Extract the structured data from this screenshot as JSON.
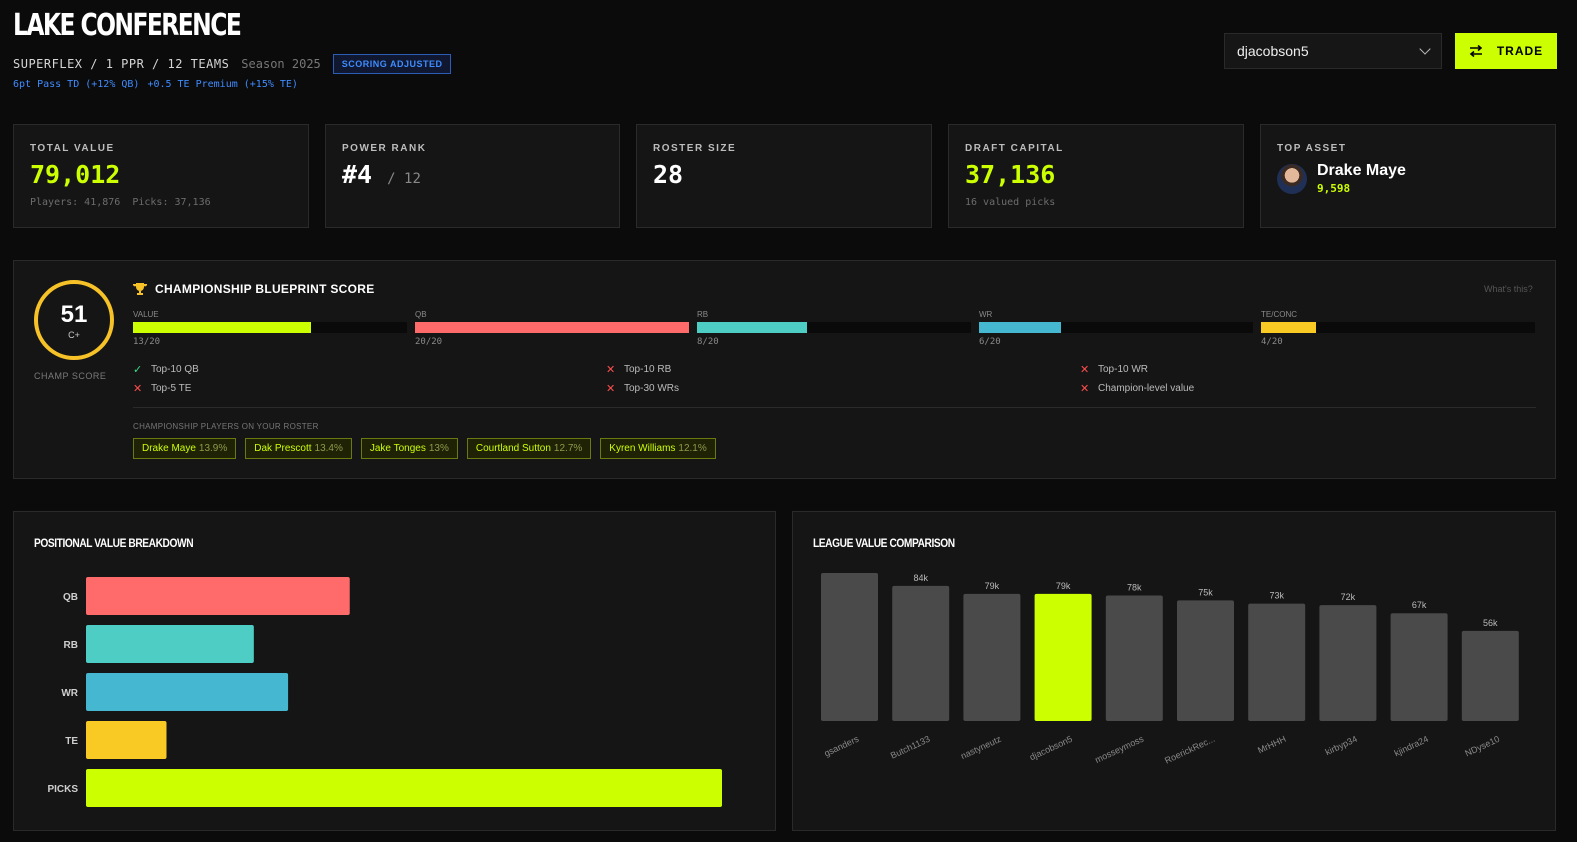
{
  "header": {
    "title": "LAKE CONFERENCE",
    "format": "SUPERFLEX / 1 PPR / 12 TEAMS",
    "season": "Season 2025",
    "badge": "SCORING ADJUSTED",
    "note1": "6pt Pass TD (+12% QB)",
    "note2": "+0.5 TE Premium (+15% TE)",
    "user": "djacobson5",
    "trade_label": "TRADE"
  },
  "cards": {
    "total": {
      "label": "TOTAL VALUE",
      "value": "79,012",
      "sub": "Players: 41,876  Picks: 37,136"
    },
    "rank": {
      "label": "POWER RANK",
      "value": "#4",
      "of": "/ 12"
    },
    "roster": {
      "label": "ROSTER SIZE",
      "value": "28"
    },
    "draft": {
      "label": "DRAFT CAPITAL",
      "value": "37,136",
      "sub": "16 valued picks"
    },
    "top": {
      "label": "TOP ASSET",
      "name": "Drake Maye",
      "value": "9,598"
    }
  },
  "blueprint": {
    "score": "51",
    "grade": "C+",
    "score_label": "CHAMP SCORE",
    "title": "CHAMPIONSHIP BLUEPRINT SCORE",
    "whats": "What's this?",
    "meters": [
      {
        "label": "VALUE",
        "score": "13/20",
        "fraction": 0.65,
        "color": "#ccff00"
      },
      {
        "label": "QB",
        "score": "20/20",
        "fraction": 1.0,
        "color": "#ff6b6b"
      },
      {
        "label": "RB",
        "score": "8/20",
        "fraction": 0.4,
        "color": "#4ecdc4"
      },
      {
        "label": "WR",
        "score": "6/20",
        "fraction": 0.3,
        "color": "#45b7d1"
      },
      {
        "label": "TE/CONC",
        "score": "4/20",
        "fraction": 0.2,
        "color": "#f9ca24"
      }
    ],
    "checks": [
      {
        "label": "Top-10 QB",
        "ok": true
      },
      {
        "label": "Top-10 RB",
        "ok": false
      },
      {
        "label": "Top-10 WR",
        "ok": false
      },
      {
        "label": "Top-5 TE",
        "ok": false
      },
      {
        "label": "Top-30 WRs",
        "ok": false
      },
      {
        "label": "Champion-level value",
        "ok": false
      }
    ],
    "players_label": "CHAMPIONSHIP PLAYERS ON YOUR ROSTER",
    "players": [
      {
        "name": "Drake Maye",
        "pct": "13.9%"
      },
      {
        "name": "Dak Prescott",
        "pct": "13.4%"
      },
      {
        "name": "Jake Tonges",
        "pct": "13%"
      },
      {
        "name": "Courtland Sutton",
        "pct": "12.7%"
      },
      {
        "name": "Kyren Williams",
        "pct": "12.1%"
      }
    ]
  },
  "panels": {
    "positional_title": "POSITIONAL VALUE BREAKDOWN",
    "league_title": "LEAGUE VALUE COMPARISON"
  },
  "chart_data": [
    {
      "type": "bar",
      "orientation": "horizontal",
      "title": "POSITIONAL VALUE BREAKDOWN",
      "categories": [
        "QB",
        "RB",
        "WR",
        "TE",
        "PICKS"
      ],
      "values": [
        15400,
        9800,
        11800,
        4700,
        37136
      ],
      "colors": [
        "#ff6b6b",
        "#4ecdc4",
        "#45b7d1",
        "#f9ca24",
        "#ccff00"
      ],
      "xlim": [
        0,
        37136
      ]
    },
    {
      "type": "bar",
      "title": "LEAGUE VALUE COMPARISON",
      "categories": [
        "gsanders",
        "Butch1133",
        "nastyneutz",
        "djacobson5",
        "mosseymoss",
        "RoerickRec...",
        "MrHHH",
        "kirbyp34",
        "kjindra24",
        "NDyse10"
      ],
      "values": [
        92,
        84,
        79,
        79,
        78,
        75,
        73,
        72,
        67,
        56
      ],
      "labels": [
        "",
        "84k",
        "79k",
        "79k",
        "78k",
        "75k",
        "73k",
        "72k",
        "67k",
        "56k"
      ],
      "highlight": "djacobson5",
      "bar_color": "#4a4a4a",
      "highlight_color": "#ccff00",
      "ylim": [
        0,
        92
      ]
    }
  ]
}
